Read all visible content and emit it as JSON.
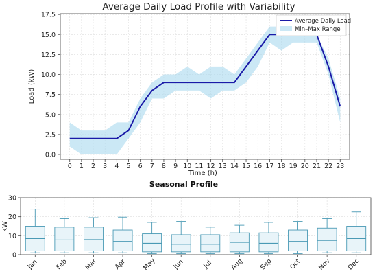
{
  "chart_data": [
    {
      "type": "line",
      "title": "Average Daily Load Profile with Variability",
      "xlabel": "Time (h)",
      "ylabel": "Load (kW)",
      "x": [
        0,
        1,
        2,
        3,
        4,
        5,
        6,
        7,
        8,
        9,
        10,
        11,
        12,
        13,
        14,
        15,
        16,
        17,
        18,
        19,
        20,
        21,
        22,
        23
      ],
      "xlim": [
        -0.8,
        23.8
      ],
      "ylim": [
        -0.6,
        17.6
      ],
      "yticks": [
        0.0,
        2.5,
        5.0,
        7.5,
        10.0,
        12.5,
        15.0,
        17.5
      ],
      "ytick_labels": [
        "0.0",
        "2.5",
        "5.0",
        "7.5",
        "10.0",
        "12.5",
        "15.0",
        "17.5"
      ],
      "grid": true,
      "legend_position": "top-right",
      "series": [
        {
          "name": "Average Daily Load",
          "color": "#1a1aa8",
          "values": [
            2,
            2,
            2,
            2,
            2,
            3,
            6,
            8,
            9,
            9,
            9,
            9,
            9,
            9,
            9,
            11,
            13,
            15,
            15,
            15,
            15,
            15,
            11,
            6
          ]
        }
      ],
      "band": {
        "name": "Min–Max Range",
        "color": "#a9d8ef",
        "min": [
          1,
          0,
          0,
          0,
          0,
          2,
          4,
          7,
          7,
          8,
          8,
          8,
          7,
          8,
          8,
          9,
          11,
          14,
          13,
          14,
          14,
          14,
          10,
          4
        ],
        "max": [
          4,
          3,
          3,
          3,
          4,
          4,
          7,
          9,
          10,
          10,
          11,
          10,
          11,
          11,
          10,
          12,
          14,
          16,
          16,
          15,
          15,
          15,
          12,
          7
        ]
      }
    },
    {
      "type": "box",
      "title": "Seasonal Profile",
      "xlabel": "",
      "ylabel": "kW",
      "categories": [
        "Jan",
        "Feb",
        "Mar",
        "Apr",
        "May",
        "Jun",
        "Jul",
        "Aug",
        "Sep",
        "Oct",
        "Nov",
        "Dec"
      ],
      "ylim": [
        0,
        30
      ],
      "yticks": [
        0,
        10,
        20,
        30
      ],
      "grid": true,
      "box_color": "#4a9ab5",
      "box_fill": "#e8f4f9",
      "boxes": [
        {
          "min": 1,
          "q1": 2,
          "median": 8.5,
          "q3": 15,
          "max": 24
        },
        {
          "min": 1,
          "q1": 2,
          "median": 7.8,
          "q3": 14.5,
          "max": 19
        },
        {
          "min": 1,
          "q1": 2,
          "median": 8,
          "q3": 14.5,
          "max": 19.5
        },
        {
          "min": 1,
          "q1": 2,
          "median": 7,
          "q3": 13,
          "max": 19.8
        },
        {
          "min": 0.5,
          "q1": 1.5,
          "median": 6,
          "q3": 11,
          "max": 17
        },
        {
          "min": 0.5,
          "q1": 1.5,
          "median": 5.5,
          "q3": 10.5,
          "max": 17.5
        },
        {
          "min": 0.5,
          "q1": 1.5,
          "median": 5.5,
          "q3": 10.5,
          "max": 14.5
        },
        {
          "min": 0.5,
          "q1": 1.5,
          "median": 6.5,
          "q3": 11.5,
          "max": 15.5
        },
        {
          "min": 0.5,
          "q1": 1.5,
          "median": 6,
          "q3": 11.5,
          "max": 17
        },
        {
          "min": 0.5,
          "q1": 2,
          "median": 7,
          "q3": 13,
          "max": 17.5
        },
        {
          "min": 1,
          "q1": 2,
          "median": 7.5,
          "q3": 14,
          "max": 19
        },
        {
          "min": 1,
          "q1": 2,
          "median": 8.5,
          "q3": 15,
          "max": 22.5
        }
      ]
    }
  ]
}
